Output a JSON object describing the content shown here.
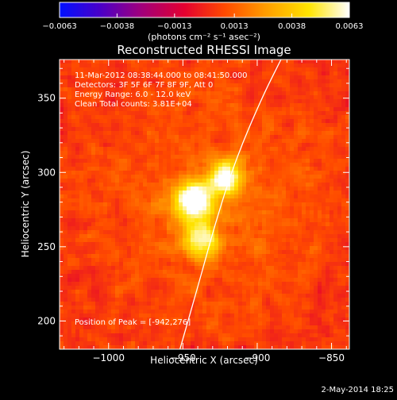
{
  "chart_data": {
    "type": "heatmap",
    "title": "Reconstructed RHESSI Image",
    "xlabel": "Heliocentric X (arcsec)",
    "ylabel": "Heliocentric Y (arcsec)",
    "xlim": [
      -1033,
      -838
    ],
    "ylim": [
      181,
      376
    ],
    "xticks": [
      -1000,
      -950,
      -900,
      -850
    ],
    "xtick_labels": [
      "−1000",
      "−950",
      "−900",
      "−850"
    ],
    "yticks": [
      200,
      250,
      300,
      350
    ],
    "ytick_labels": [
      "200",
      "250",
      "300",
      "350"
    ],
    "colorbar": {
      "range": [
        -0.0063,
        0.0063
      ],
      "ticks": [
        -0.0063,
        -0.0038,
        -0.0013,
        0.0013,
        0.0038,
        0.0063
      ],
      "tick_labels": [
        "−0.0063",
        "−0.0038",
        "−0.0013",
        "0.0013",
        "0.0038",
        "0.0063"
      ],
      "unit_label": "(photons cm⁻² s⁻¹ asec⁻²)",
      "colors": [
        "#0010ff",
        "#4a00c8",
        "#a0007c",
        "#e40030",
        "#ff4a00",
        "#ff9c00",
        "#ffe400",
        "#ffffff"
      ]
    },
    "info_lines": [
      "11-Mar-2012 08:38:44.000 to 08:41:50.000",
      "Detectors: 3F 5F 6F 7F 8F 9F, Att 0",
      "Energy Range: 6.0 - 12.0 keV",
      "Clean     Total counts: 3.81E+04"
    ],
    "peak_label": "Position of Peak = [-942,276]",
    "sources": [
      {
        "x": -943,
        "y": 280,
        "sigma": 9,
        "amp": 0.0063
      },
      {
        "x": -937,
        "y": 254,
        "sigma": 8,
        "amp": 0.0049
      },
      {
        "x": -921,
        "y": 297,
        "sigma": 8,
        "amp": 0.0055
      }
    ],
    "limb_curve": [
      [
        -952,
        181
      ],
      [
        -938,
        230
      ],
      [
        -927,
        270
      ],
      [
        -914,
        310
      ],
      [
        -897,
        350
      ],
      [
        -884,
        376
      ]
    ],
    "footer_date": "2-May-2014 18:25"
  }
}
